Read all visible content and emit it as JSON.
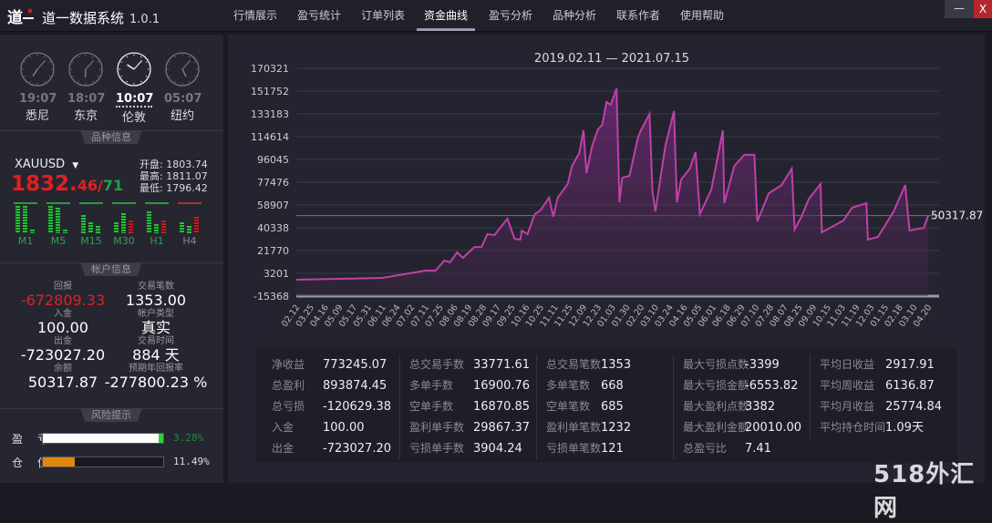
{
  "app": {
    "title": "道一数据系统",
    "version": "1.0.1",
    "logo": "道一"
  },
  "tabs": [
    {
      "label": "行情展示"
    },
    {
      "label": "盈亏统计"
    },
    {
      "label": "订单列表"
    },
    {
      "label": "资金曲线",
      "active": true
    },
    {
      "label": "盈亏分析"
    },
    {
      "label": "品种分析"
    },
    {
      "label": "联系作者"
    },
    {
      "label": "使用帮助"
    }
  ],
  "window": {
    "minimize": "—",
    "close": "X"
  },
  "clocks": [
    {
      "time": "19:07",
      "city": "悉尼",
      "h": 19,
      "m": 7
    },
    {
      "time": "18:07",
      "city": "东京",
      "h": 18,
      "m": 7
    },
    {
      "time": "10:07",
      "city": "伦敦",
      "h": 10,
      "m": 7,
      "active": true
    },
    {
      "time": "05:07",
      "city": "纽约",
      "h": 5,
      "m": 7
    }
  ],
  "symbol": {
    "section": "品种信息",
    "name": "XAUUSD",
    "price_main": "1832.",
    "price_bid": "46",
    "sep": "/",
    "price_ask": "71",
    "open": "开盘: 1803.74",
    "high": "最高: 1811.07",
    "low": "最低: 1796.42",
    "timeframes": [
      "M1",
      "M5",
      "M15",
      "M30",
      "H1",
      "H4"
    ]
  },
  "account": {
    "section": "帐户信息",
    "left": [
      {
        "k": "回报",
        "v": "-672809.33",
        "red": true
      },
      {
        "k": "入金",
        "v": "100.00"
      },
      {
        "k": "出金",
        "v": "-723027.20"
      },
      {
        "k": "余额",
        "v": "50317.87"
      }
    ],
    "right": [
      {
        "k": "交易笔数",
        "v": "1353.00"
      },
      {
        "k": "帐户类型",
        "v": "真实"
      },
      {
        "k": "交易时间",
        "v": "884 天"
      },
      {
        "k": "预期年回报率",
        "v": "-277800.23 %"
      }
    ]
  },
  "risk": {
    "section": "风险提示",
    "pl_label": "盈 亏",
    "pl_pct": "3.28%",
    "pl_value": 3.28,
    "pos_label": "仓 位",
    "pos_pct": "11.49%",
    "pos_value": 11.49,
    "pl_color": "#ffffff",
    "pos_color": "#e0860c"
  },
  "chart_data": {
    "type": "area",
    "title": "2019.02.11 — 2021.07.15",
    "color": "#c040a8",
    "yticks": [
      170321,
      151752,
      133183,
      114614,
      96045,
      77476,
      58907,
      40338,
      21770,
      3201,
      -15368
    ],
    "ylim": [
      -15368,
      170321
    ],
    "xticks": [
      "02.12",
      "03.25",
      "04.16",
      "05.09",
      "05.17",
      "05.31",
      "06.11",
      "06.24",
      "07.02",
      "07.11",
      "07.25",
      "08.06",
      "08.19",
      "08.28",
      "09.17",
      "09.25",
      "10.16",
      "10.25",
      "11.11",
      "11.25",
      "12.09",
      "12.23",
      "01.03",
      "01.30",
      "02.20",
      "03.10",
      "03.24",
      "04.16",
      "05.05",
      "06.01",
      "06.18",
      "06.29",
      "07.10",
      "07.28",
      "08.07",
      "08.25",
      "09.09",
      "10.15",
      "11.03",
      "11.19",
      "12.03",
      "01.15",
      "02.18",
      "03.10",
      "04.20"
    ],
    "last_value_label": "50317.87",
    "last_value": 50317.87,
    "grid": true,
    "points": [
      [
        0,
        -2000
      ],
      [
        6,
        -500
      ],
      [
        9,
        5400
      ],
      [
        9.7,
        5400
      ],
      [
        10.3,
        13600
      ],
      [
        10.7,
        12100
      ],
      [
        11.2,
        20300
      ],
      [
        11.6,
        15800
      ],
      [
        12.4,
        24700
      ],
      [
        12.9,
        24700
      ],
      [
        13.3,
        35100
      ],
      [
        13.8,
        34400
      ],
      [
        14.7,
        47800
      ],
      [
        15.2,
        31400
      ],
      [
        15.6,
        30700
      ],
      [
        15.7,
        38100
      ],
      [
        16.1,
        35100
      ],
      [
        16.6,
        51500
      ],
      [
        17,
        54500
      ],
      [
        17.6,
        64900
      ],
      [
        17.9,
        49300
      ],
      [
        18.2,
        64900
      ],
      [
        18.9,
        76000
      ],
      [
        19.2,
        90800
      ],
      [
        19.7,
        101200
      ],
      [
        20,
        119800
      ],
      [
        20.2,
        84900
      ],
      [
        20.6,
        107200
      ],
      [
        21,
        120500
      ],
      [
        21.3,
        124300
      ],
      [
        21.6,
        142900
      ],
      [
        21.9,
        140600
      ],
      [
        22.3,
        154000
      ],
      [
        22.4,
        107200
      ],
      [
        22.5,
        61100
      ],
      [
        22.7,
        81200
      ],
      [
        23.2,
        82700
      ],
      [
        23.8,
        114600
      ],
      [
        24,
        119800
      ],
      [
        24.6,
        133200
      ],
      [
        24.8,
        70000
      ],
      [
        25,
        53700
      ],
      [
        25.7,
        107200
      ],
      [
        26.3,
        135400
      ],
      [
        26.5,
        61100
      ],
      [
        26.8,
        79700
      ],
      [
        27.4,
        88600
      ],
      [
        27.8,
        102000
      ],
      [
        28.1,
        51500
      ],
      [
        28.9,
        71500
      ],
      [
        29.7,
        119800
      ],
      [
        29.8,
        60400
      ],
      [
        30.5,
        90800
      ],
      [
        31.2,
        99800
      ],
      [
        31.9,
        99800
      ],
      [
        32.1,
        45500
      ],
      [
        32.9,
        68500
      ],
      [
        33.8,
        75200
      ],
      [
        34.5,
        88600
      ],
      [
        34.7,
        38900
      ],
      [
        35.2,
        50000
      ],
      [
        35.7,
        64100
      ],
      [
        36.5,
        76000
      ],
      [
        36.6,
        36600
      ],
      [
        38.1,
        46300
      ],
      [
        38.7,
        56700
      ],
      [
        39.7,
        60400
      ],
      [
        39.8,
        30700
      ],
      [
        40.5,
        32900
      ],
      [
        41.6,
        53700
      ],
      [
        42.4,
        75200
      ],
      [
        42.7,
        38100
      ],
      [
        43.7,
        40300
      ],
      [
        44,
        50318
      ]
    ]
  },
  "stats": [
    [
      {
        "k": "净收益",
        "v": "773245.07"
      },
      {
        "k": "总盈利",
        "v": "893874.45"
      },
      {
        "k": "总亏损",
        "v": "-120629.38"
      },
      {
        "k": "入金",
        "v": "100.00"
      },
      {
        "k": "出金",
        "v": "-723027.20"
      }
    ],
    [
      {
        "k": "总交易手数",
        "v": "33771.61"
      },
      {
        "k": "多单手数",
        "v": "16900.76"
      },
      {
        "k": "空单手数",
        "v": "16870.85"
      },
      {
        "k": "盈利单手数",
        "v": "29867.37"
      },
      {
        "k": "亏损单手数",
        "v": "3904.24"
      }
    ],
    [
      {
        "k": "总交易笔数",
        "v": "1353"
      },
      {
        "k": "多单笔数",
        "v": "668"
      },
      {
        "k": "空单笔数",
        "v": "685"
      },
      {
        "k": "盈利单笔数",
        "v": "1232"
      },
      {
        "k": "亏损单笔数",
        "v": "121"
      }
    ],
    [
      {
        "k": "最大亏损点数",
        "v": "-3399"
      },
      {
        "k": "最大亏损金额",
        "v": "-6553.82"
      },
      {
        "k": "最大盈利点数",
        "v": "3382"
      },
      {
        "k": "最大盈利金额",
        "v": "20010.00"
      },
      {
        "k": "总盈亏比",
        "v": "7.41"
      }
    ],
    [
      {
        "k": "平均日收益",
        "v": "2917.91"
      },
      {
        "k": "平均周收益",
        "v": "6136.87"
      },
      {
        "k": "平均月收益",
        "v": "25774.84"
      },
      {
        "k": "平均持仓时间",
        "v": "1.09天"
      }
    ]
  ],
  "watermark": "518外汇网"
}
